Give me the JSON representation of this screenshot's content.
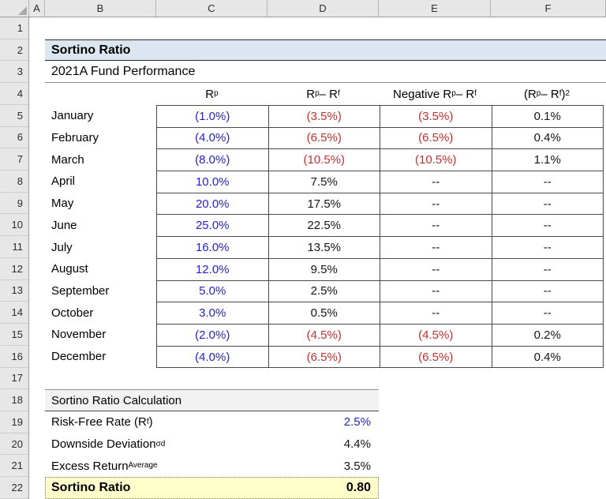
{
  "colors": {
    "accent-band": "#DCE6F1",
    "section-band": "#F2F2F2",
    "result-fill": "#FFFFCC",
    "input-blue": "#2323CB",
    "negative-red": "#C03030",
    "table-border": "#4A4A4A"
  },
  "spreadsheet": {
    "column_letters": [
      "A",
      "B",
      "C",
      "D",
      "E",
      "F"
    ],
    "row_numbers": [
      "1",
      "2",
      "3",
      "4",
      "5",
      "6",
      "7",
      "8",
      "9",
      "10",
      "11",
      "12",
      "13",
      "14",
      "15",
      "16",
      "17",
      "18",
      "19",
      "20",
      "21",
      "22"
    ]
  },
  "title": {
    "text": "Sortino Ratio"
  },
  "subtitle": {
    "text": "2021A Fund Performance"
  },
  "table": {
    "headers": [
      {
        "parts": [
          {
            "t": "R"
          },
          {
            "sub": "p"
          }
        ]
      },
      {
        "parts": [
          {
            "t": "R"
          },
          {
            "sub": "p"
          },
          {
            "t": " – R"
          },
          {
            "sub": "f"
          }
        ]
      },
      {
        "parts": [
          {
            "t": "Negative R"
          },
          {
            "sub": "p"
          },
          {
            "t": " – R"
          },
          {
            "sub": "f"
          }
        ]
      },
      {
        "parts": [
          {
            "t": "(R"
          },
          {
            "sub": "p"
          },
          {
            "t": " – R"
          },
          {
            "sub": "f"
          },
          {
            "t": ")"
          },
          {
            "sup": "2"
          }
        ]
      }
    ],
    "rows": [
      {
        "month": "January",
        "rp": "(1.0%)",
        "rp_color": "blue",
        "excess": "(3.5%)",
        "excess_color": "red",
        "negative": "(3.5%)",
        "negative_color": "red",
        "squared": "0.1%",
        "squared_color": "black"
      },
      {
        "month": "February",
        "rp": "(4.0%)",
        "rp_color": "blue",
        "excess": "(6.5%)",
        "excess_color": "red",
        "negative": "(6.5%)",
        "negative_color": "red",
        "squared": "0.4%",
        "squared_color": "black"
      },
      {
        "month": "March",
        "rp": "(8.0%)",
        "rp_color": "blue",
        "excess": "(10.5%)",
        "excess_color": "red",
        "negative": "(10.5%)",
        "negative_color": "red",
        "squared": "1.1%",
        "squared_color": "black"
      },
      {
        "month": "April",
        "rp": "10.0%",
        "rp_color": "blue",
        "excess": "7.5%",
        "excess_color": "black",
        "negative": "--",
        "negative_color": "black",
        "squared": "--",
        "squared_color": "black"
      },
      {
        "month": "May",
        "rp": "20.0%",
        "rp_color": "blue",
        "excess": "17.5%",
        "excess_color": "black",
        "negative": "--",
        "negative_color": "black",
        "squared": "--",
        "squared_color": "black"
      },
      {
        "month": "June",
        "rp": "25.0%",
        "rp_color": "blue",
        "excess": "22.5%",
        "excess_color": "black",
        "negative": "--",
        "negative_color": "black",
        "squared": "--",
        "squared_color": "black"
      },
      {
        "month": "July",
        "rp": "16.0%",
        "rp_color": "blue",
        "excess": "13.5%",
        "excess_color": "black",
        "negative": "--",
        "negative_color": "black",
        "squared": "--",
        "squared_color": "black"
      },
      {
        "month": "August",
        "rp": "12.0%",
        "rp_color": "blue",
        "excess": "9.5%",
        "excess_color": "black",
        "negative": "--",
        "negative_color": "black",
        "squared": "--",
        "squared_color": "black"
      },
      {
        "month": "September",
        "rp": "5.0%",
        "rp_color": "blue",
        "excess": "2.5%",
        "excess_color": "black",
        "negative": "--",
        "negative_color": "black",
        "squared": "--",
        "squared_color": "black"
      },
      {
        "month": "October",
        "rp": "3.0%",
        "rp_color": "blue",
        "excess": "0.5%",
        "excess_color": "black",
        "negative": "--",
        "negative_color": "black",
        "squared": "--",
        "squared_color": "black"
      },
      {
        "month": "November",
        "rp": "(2.0%)",
        "rp_color": "blue",
        "excess": "(4.5%)",
        "excess_color": "red",
        "negative": "(4.5%)",
        "negative_color": "red",
        "squared": "0.2%",
        "squared_color": "black"
      },
      {
        "month": "December",
        "rp": "(4.0%)",
        "rp_color": "blue",
        "excess": "(6.5%)",
        "excess_color": "red",
        "negative": "(6.5%)",
        "negative_color": "red",
        "squared": "0.4%",
        "squared_color": "black"
      }
    ]
  },
  "calc": {
    "header": "Sortino Ratio Calculation",
    "rows": [
      {
        "parts": [
          {
            "t": "Risk-Free Rate (R"
          },
          {
            "sub": "f"
          },
          {
            "t": ")"
          }
        ],
        "value": "2.5%",
        "value_color": "blue"
      },
      {
        "parts": [
          {
            "t": "Downside Deviation "
          },
          {
            "sub": "σd"
          }
        ],
        "value": "4.4%",
        "value_color": "black"
      },
      {
        "parts": [
          {
            "t": "Excess Return "
          },
          {
            "sub": "Average"
          }
        ],
        "value": "3.5%",
        "value_color": "black"
      }
    ],
    "result": {
      "label": "Sortino Ratio",
      "value": "0.80"
    }
  }
}
